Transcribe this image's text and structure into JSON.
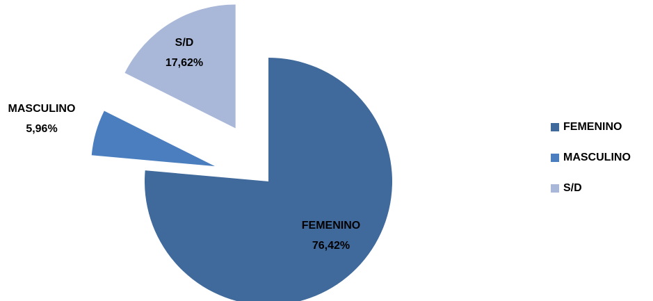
{
  "chart_data": {
    "type": "pie",
    "categories": [
      "FEMENINO",
      "MASCULINO",
      "S/D"
    ],
    "values": [
      76.42,
      5.96,
      17.62
    ],
    "value_labels": [
      "76,42%",
      "5,96%",
      "17,62%"
    ],
    "colors": [
      "#406a9c",
      "#4a7ebf",
      "#a9b8d8"
    ],
    "legend": "right"
  }
}
